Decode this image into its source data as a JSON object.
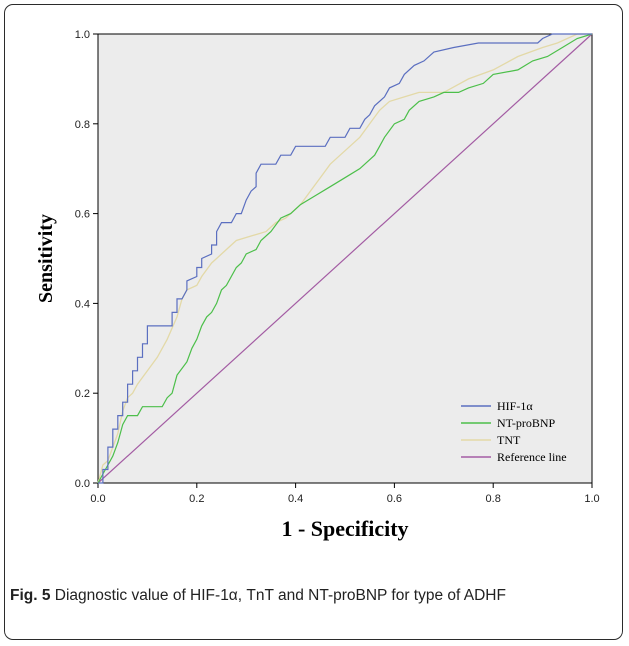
{
  "caption": {
    "label": "Fig. 5",
    "text": " Diagnostic value of HIF-1α, TnT and NT-proBNP for type of ADHF"
  },
  "chart_data": {
    "type": "line",
    "xlabel": "1 - Specificity",
    "ylabel": "Sensitivity",
    "xlim": [
      0,
      1
    ],
    "ylim": [
      0,
      1
    ],
    "x_ticks": [
      "0.0",
      "0.2",
      "0.4",
      "0.6",
      "0.8",
      "1.0"
    ],
    "y_ticks": [
      "0.0",
      "0.2",
      "0.4",
      "0.6",
      "0.8",
      "1.0"
    ],
    "legend_position": "bottom-right",
    "grid": false,
    "series": [
      {
        "name": "HIF-1α",
        "color": "#5b6fc0",
        "points": [
          [
            0,
            0
          ],
          [
            0.01,
            0
          ],
          [
            0.01,
            0.03
          ],
          [
            0.02,
            0.03
          ],
          [
            0.02,
            0.08
          ],
          [
            0.03,
            0.08
          ],
          [
            0.03,
            0.12
          ],
          [
            0.04,
            0.12
          ],
          [
            0.04,
            0.15
          ],
          [
            0.05,
            0.15
          ],
          [
            0.05,
            0.18
          ],
          [
            0.06,
            0.18
          ],
          [
            0.06,
            0.22
          ],
          [
            0.07,
            0.22
          ],
          [
            0.07,
            0.25
          ],
          [
            0.08,
            0.25
          ],
          [
            0.08,
            0.28
          ],
          [
            0.09,
            0.28
          ],
          [
            0.09,
            0.31
          ],
          [
            0.1,
            0.31
          ],
          [
            0.1,
            0.35
          ],
          [
            0.15,
            0.35
          ],
          [
            0.15,
            0.38
          ],
          [
            0.16,
            0.38
          ],
          [
            0.16,
            0.41
          ],
          [
            0.17,
            0.41
          ],
          [
            0.18,
            0.43
          ],
          [
            0.18,
            0.45
          ],
          [
            0.2,
            0.46
          ],
          [
            0.2,
            0.48
          ],
          [
            0.21,
            0.48
          ],
          [
            0.21,
            0.5
          ],
          [
            0.23,
            0.51
          ],
          [
            0.23,
            0.53
          ],
          [
            0.24,
            0.53
          ],
          [
            0.24,
            0.56
          ],
          [
            0.25,
            0.58
          ],
          [
            0.27,
            0.58
          ],
          [
            0.28,
            0.6
          ],
          [
            0.29,
            0.6
          ],
          [
            0.3,
            0.63
          ],
          [
            0.31,
            0.65
          ],
          [
            0.32,
            0.66
          ],
          [
            0.32,
            0.69
          ],
          [
            0.33,
            0.71
          ],
          [
            0.36,
            0.71
          ],
          [
            0.37,
            0.73
          ],
          [
            0.39,
            0.73
          ],
          [
            0.4,
            0.75
          ],
          [
            0.46,
            0.75
          ],
          [
            0.47,
            0.77
          ],
          [
            0.5,
            0.77
          ],
          [
            0.51,
            0.79
          ],
          [
            0.53,
            0.79
          ],
          [
            0.54,
            0.81
          ],
          [
            0.55,
            0.82
          ],
          [
            0.56,
            0.84
          ],
          [
            0.58,
            0.86
          ],
          [
            0.59,
            0.88
          ],
          [
            0.61,
            0.89
          ],
          [
            0.62,
            0.91
          ],
          [
            0.64,
            0.93
          ],
          [
            0.66,
            0.94
          ],
          [
            0.68,
            0.96
          ],
          [
            0.72,
            0.97
          ],
          [
            0.77,
            0.98
          ],
          [
            0.89,
            0.98
          ],
          [
            0.9,
            0.99
          ],
          [
            0.92,
            1.0
          ],
          [
            1.0,
            1.0
          ]
        ]
      },
      {
        "name": "NT-proBNP",
        "color": "#4cbf4a",
        "points": [
          [
            0,
            0
          ],
          [
            0.01,
            0.02
          ],
          [
            0.02,
            0.04
          ],
          [
            0.03,
            0.06
          ],
          [
            0.04,
            0.09
          ],
          [
            0.05,
            0.13
          ],
          [
            0.06,
            0.15
          ],
          [
            0.08,
            0.15
          ],
          [
            0.09,
            0.17
          ],
          [
            0.13,
            0.17
          ],
          [
            0.14,
            0.19
          ],
          [
            0.15,
            0.2
          ],
          [
            0.16,
            0.24
          ],
          [
            0.18,
            0.27
          ],
          [
            0.19,
            0.3
          ],
          [
            0.2,
            0.32
          ],
          [
            0.21,
            0.35
          ],
          [
            0.22,
            0.37
          ],
          [
            0.23,
            0.38
          ],
          [
            0.24,
            0.4
          ],
          [
            0.25,
            0.43
          ],
          [
            0.26,
            0.44
          ],
          [
            0.28,
            0.48
          ],
          [
            0.29,
            0.49
          ],
          [
            0.3,
            0.51
          ],
          [
            0.32,
            0.52
          ],
          [
            0.33,
            0.54
          ],
          [
            0.35,
            0.56
          ],
          [
            0.37,
            0.59
          ],
          [
            0.39,
            0.6
          ],
          [
            0.41,
            0.62
          ],
          [
            0.44,
            0.64
          ],
          [
            0.47,
            0.66
          ],
          [
            0.5,
            0.68
          ],
          [
            0.53,
            0.7
          ],
          [
            0.55,
            0.72
          ],
          [
            0.56,
            0.73
          ],
          [
            0.57,
            0.75
          ],
          [
            0.58,
            0.77
          ],
          [
            0.6,
            0.8
          ],
          [
            0.62,
            0.81
          ],
          [
            0.63,
            0.83
          ],
          [
            0.65,
            0.85
          ],
          [
            0.68,
            0.86
          ],
          [
            0.7,
            0.87
          ],
          [
            0.73,
            0.87
          ],
          [
            0.75,
            0.88
          ],
          [
            0.78,
            0.89
          ],
          [
            0.8,
            0.91
          ],
          [
            0.85,
            0.92
          ],
          [
            0.88,
            0.94
          ],
          [
            0.91,
            0.95
          ],
          [
            0.94,
            0.97
          ],
          [
            0.97,
            0.99
          ],
          [
            1.0,
            1.0
          ]
        ]
      },
      {
        "name": "TNT",
        "color": "#e3d9a7",
        "points": [
          [
            0,
            0
          ],
          [
            0.01,
            0.04
          ],
          [
            0.02,
            0.05
          ],
          [
            0.03,
            0.08
          ],
          [
            0.04,
            0.11
          ],
          [
            0.05,
            0.16
          ],
          [
            0.06,
            0.19
          ],
          [
            0.07,
            0.2
          ],
          [
            0.08,
            0.22
          ],
          [
            0.1,
            0.25
          ],
          [
            0.12,
            0.28
          ],
          [
            0.14,
            0.32
          ],
          [
            0.16,
            0.37
          ],
          [
            0.17,
            0.41
          ],
          [
            0.18,
            0.43
          ],
          [
            0.2,
            0.44
          ],
          [
            0.21,
            0.46
          ],
          [
            0.23,
            0.49
          ],
          [
            0.24,
            0.5
          ],
          [
            0.26,
            0.52
          ],
          [
            0.28,
            0.54
          ],
          [
            0.31,
            0.55
          ],
          [
            0.34,
            0.56
          ],
          [
            0.36,
            0.58
          ],
          [
            0.38,
            0.59
          ],
          [
            0.41,
            0.62
          ],
          [
            0.43,
            0.65
          ],
          [
            0.45,
            0.68
          ],
          [
            0.47,
            0.71
          ],
          [
            0.49,
            0.73
          ],
          [
            0.51,
            0.75
          ],
          [
            0.53,
            0.77
          ],
          [
            0.55,
            0.8
          ],
          [
            0.57,
            0.83
          ],
          [
            0.59,
            0.85
          ],
          [
            0.62,
            0.86
          ],
          [
            0.65,
            0.87
          ],
          [
            0.7,
            0.87
          ],
          [
            0.75,
            0.9
          ],
          [
            0.8,
            0.92
          ],
          [
            0.85,
            0.95
          ],
          [
            0.9,
            0.97
          ],
          [
            0.93,
            0.98
          ],
          [
            0.97,
            1.0
          ],
          [
            1.0,
            1.0
          ]
        ]
      },
      {
        "name": "Reference line",
        "color": "#a35ca3",
        "points": [
          [
            0,
            0
          ],
          [
            1,
            1
          ]
        ]
      }
    ]
  }
}
